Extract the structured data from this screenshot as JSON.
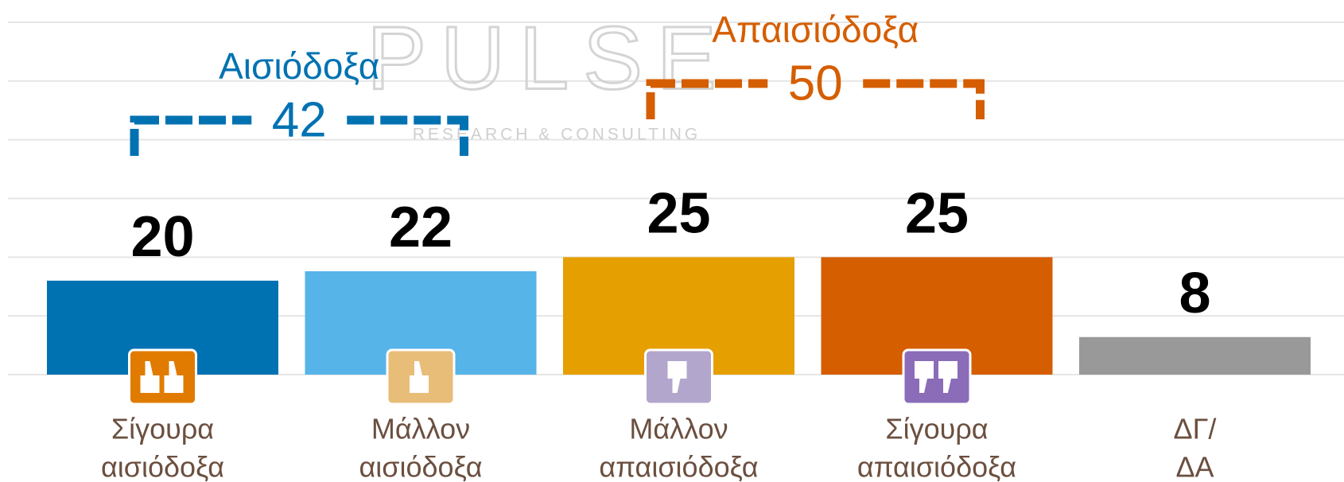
{
  "chart_data": {
    "type": "bar",
    "watermark": {
      "title": "PULSE",
      "subtitle": "RESEARCH & CONSULTING"
    },
    "categories": [
      [
        "Σίγουρα",
        "αισιόδοξα"
      ],
      [
        "Μάλλον",
        "αισιόδοξα"
      ],
      [
        "Μάλλον",
        "απαισιόδοξα"
      ],
      [
        "Σίγουρα",
        "απαισιόδοξα"
      ],
      [
        "ΔΓ/",
        "ΔΑ"
      ]
    ],
    "values": [
      20,
      22,
      25,
      25,
      8
    ],
    "colors": [
      "#0072b2",
      "#56b4e9",
      "#e69f00",
      "#d55e00",
      "#999999"
    ],
    "groups": [
      {
        "label": "Αισιόδοξα",
        "value": 42,
        "color": "#0072b2"
      },
      {
        "label": "Απαισιόδοξα",
        "value": 50,
        "color": "#d55e00"
      }
    ],
    "ylim": [
      0,
      75
    ],
    "yticks": [
      0,
      12.5,
      25,
      37.5,
      50,
      62.5,
      75
    ],
    "grid": true
  }
}
